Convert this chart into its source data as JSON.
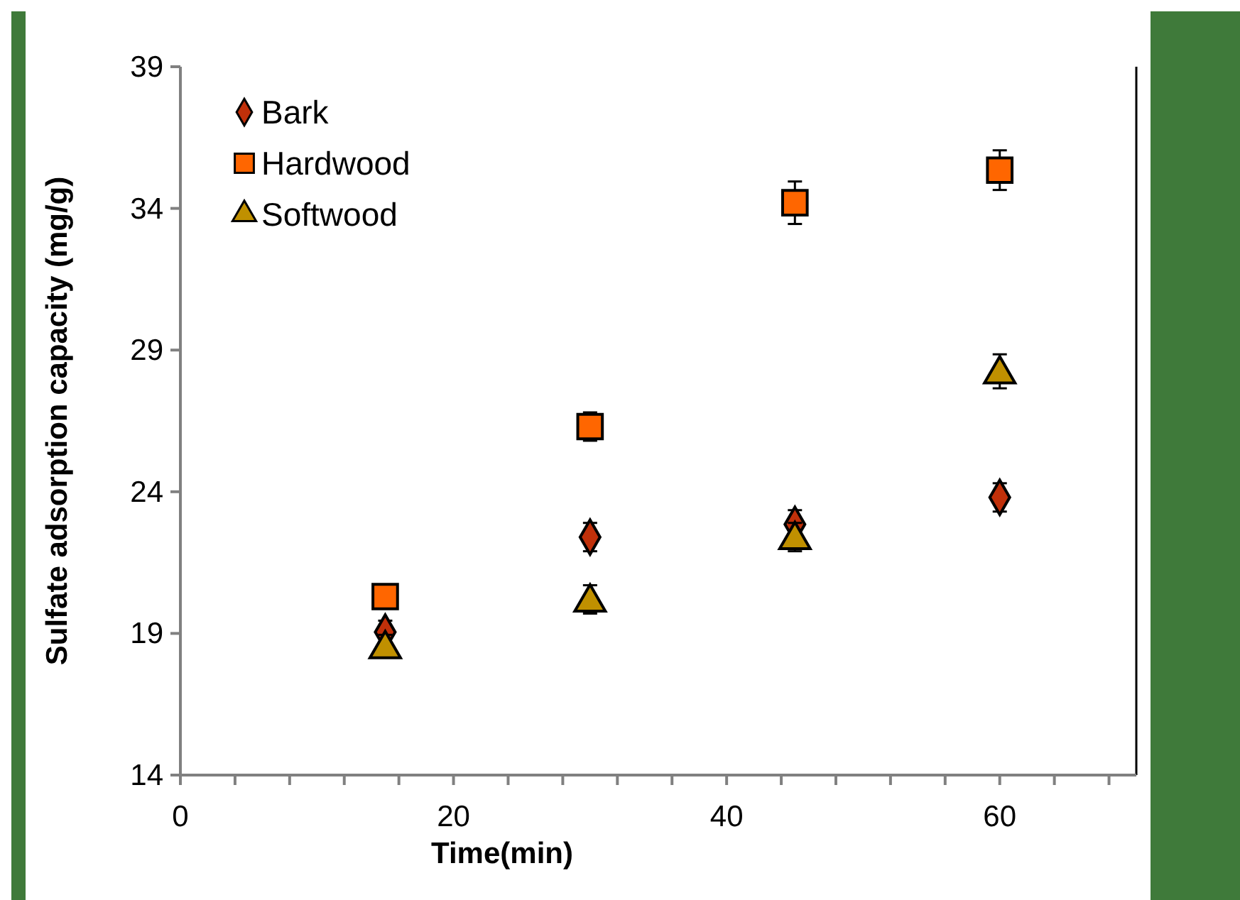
{
  "chart_data": {
    "type": "scatter",
    "xlabel": "Time(min)",
    "ylabel": "Sulfate adsorption capacity (mg/g)",
    "xlim": [
      0,
      70
    ],
    "xticks": [
      0,
      {
        "value": 4,
        "label": null
      },
      {
        "value": 8,
        "label": null
      },
      {
        "value": 12,
        "label": null
      },
      {
        "value": 16,
        "label": null
      },
      20,
      {
        "value": 24,
        "label": null
      },
      {
        "value": 28,
        "label": null
      },
      {
        "value": 32,
        "label": null
      },
      {
        "value": 36,
        "label": null
      },
      40,
      {
        "value": 44,
        "label": null
      },
      {
        "value": 48,
        "label": null
      },
      {
        "value": 52,
        "label": null
      },
      {
        "value": 56,
        "label": null
      },
      60,
      {
        "value": 64,
        "label": null
      },
      {
        "value": 68,
        "label": null
      }
    ],
    "ylim": [
      14,
      39
    ],
    "yticks": [
      14,
      19,
      24,
      29,
      34,
      39
    ],
    "grid": false,
    "legend": "top left",
    "series": [
      {
        "name": "Bark",
        "color": "#c0300a",
        "marker": "diamond",
        "x": [
          15,
          30,
          45,
          60
        ],
        "values": [
          19.05,
          22.4,
          22.85,
          23.8
        ],
        "errors": [
          0.4,
          0.5,
          0.5,
          0.5
        ]
      },
      {
        "name": "Hardwood",
        "color": "#ff6600",
        "marker": "square",
        "x": [
          15,
          30,
          45,
          60
        ],
        "values": [
          20.3,
          26.3,
          34.2,
          35.35
        ],
        "errors": [
          0.4,
          0.5,
          0.75,
          0.7
        ]
      },
      {
        "name": "Softwood",
        "color": "#c09000",
        "marker": "triangle",
        "x": [
          15,
          30,
          45,
          60
        ],
        "values": [
          18.55,
          20.2,
          22.4,
          28.25
        ],
        "errors": [
          0.4,
          0.5,
          0.5,
          0.6
        ]
      }
    ]
  }
}
